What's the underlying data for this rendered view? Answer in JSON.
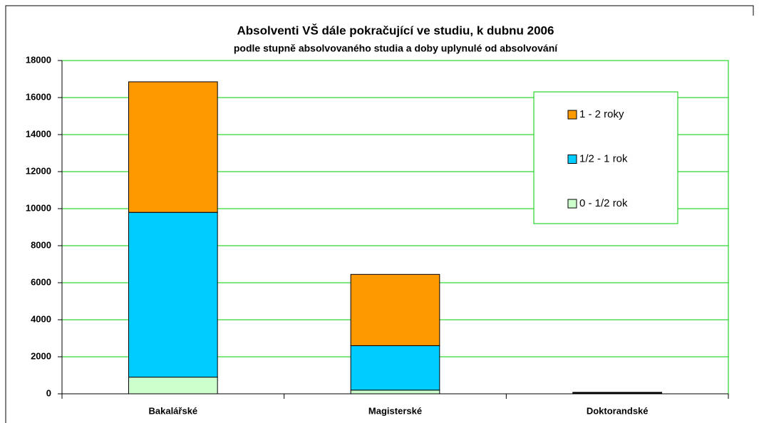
{
  "chart_data": {
    "type": "stacked_bar",
    "title": "Absolventi VŠ dále pokračující ve studiu, k dubnu 2006",
    "subtitle": "podle stupně absolvovaného studia a doby uplynulé od absolvování",
    "categories": [
      "Bakalářské",
      "Magisterské",
      "Doktorandské"
    ],
    "series": [
      {
        "name": "0 - 1/2 rok",
        "color": "#ccffcc",
        "values": [
          900,
          200,
          20
        ]
      },
      {
        "name": "1/2 - 1 rok",
        "color": "#00ccff",
        "values": [
          8900,
          2400,
          30
        ]
      },
      {
        "name": "1 - 2 roky",
        "color": "#ff9900",
        "values": [
          7050,
          3850,
          30
        ]
      }
    ],
    "ylim": [
      0,
      18000
    ],
    "yticks": [
      0,
      2000,
      4000,
      6000,
      8000,
      10000,
      12000,
      14000,
      16000,
      18000
    ],
    "grid": true,
    "grid_color": "#00cc00",
    "legend": "upper right"
  }
}
